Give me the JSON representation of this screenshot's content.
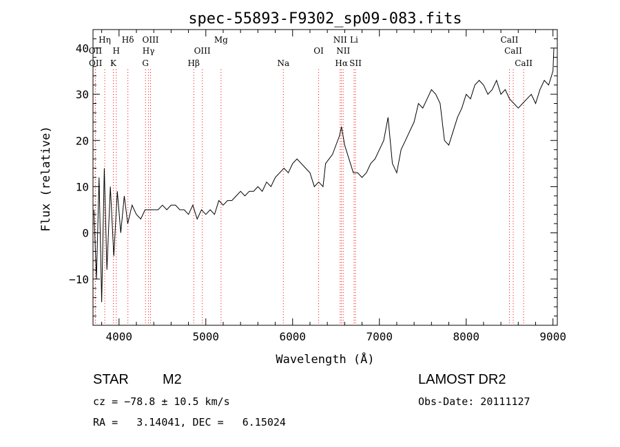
{
  "chart_data": {
    "type": "line",
    "title": "spec-55893-F9302_sp09-083.fits",
    "xlabel": "Wavelength (Å)",
    "ylabel": "Flux (relative)",
    "xlim": [
      3700,
      9050
    ],
    "ylim": [
      -20,
      44
    ],
    "x_ticks": [
      4000,
      5000,
      6000,
      7000,
      8000,
      9000
    ],
    "x_tick_labels": [
      "4000",
      "5000",
      "6000",
      "7000",
      "8000",
      "9000"
    ],
    "y_ticks": [
      -10,
      0,
      10,
      20,
      30,
      40
    ],
    "y_tick_labels": [
      "−10",
      "0",
      "10",
      "20",
      "30",
      "40"
    ],
    "grid": false,
    "line_color": "#000000",
    "marker_color": "#ff0000",
    "series": [
      {
        "x": [
          3710,
          3740,
          3770,
          3800,
          3830,
          3860,
          3900,
          3940,
          3980,
          4020,
          4060,
          4100,
          4150,
          4200,
          4250,
          4300,
          4350,
          4400,
          4450,
          4500,
          4550,
          4600,
          4650,
          4700,
          4750,
          4800,
          4850,
          4900,
          4950,
          5000,
          5050,
          5100,
          5150,
          5200,
          5250,
          5300,
          5350,
          5400,
          5450,
          5500,
          5550,
          5600,
          5650,
          5700,
          5750,
          5800,
          5850,
          5900,
          5950,
          6000,
          6050,
          6100,
          6150,
          6200,
          6250,
          6300,
          6350,
          6380,
          6420,
          6460,
          6500,
          6540,
          6563,
          6600,
          6650,
          6700,
          6750,
          6800,
          6850,
          6900,
          6950,
          7000,
          7050,
          7100,
          7150,
          7200,
          7250,
          7300,
          7350,
          7400,
          7450,
          7500,
          7550,
          7600,
          7650,
          7700,
          7750,
          7800,
          7850,
          7900,
          7950,
          8000,
          8050,
          8100,
          8150,
          8200,
          8250,
          8300,
          8350,
          8400,
          8450,
          8500,
          8550,
          8600,
          8650,
          8700,
          8750,
          8800,
          8850,
          8900,
          8950,
          9000,
          9010
        ],
        "y": [
          5,
          -10,
          12,
          -15,
          14,
          -8,
          10,
          -5,
          9,
          0,
          8,
          2,
          6,
          4,
          3,
          5,
          5,
          5,
          5,
          6,
          5,
          6,
          6,
          5,
          5,
          4,
          6,
          3,
          5,
          4,
          5,
          4,
          7,
          6,
          7,
          7,
          8,
          9,
          8,
          9,
          9,
          10,
          9,
          11,
          10,
          12,
          13,
          14,
          13,
          15,
          16,
          15,
          14,
          13,
          10,
          11,
          10,
          15,
          16,
          17,
          19,
          21,
          23,
          19,
          16,
          13,
          13,
          12,
          13,
          15,
          16,
          18,
          20,
          25,
          15,
          13,
          18,
          20,
          22,
          24,
          28,
          27,
          29,
          31,
          30,
          28,
          20,
          19,
          22,
          25,
          27,
          30,
          29,
          32,
          33,
          32,
          30,
          31,
          33,
          30,
          31,
          29,
          28,
          27,
          28,
          29,
          30,
          28,
          31,
          33,
          32,
          35,
          40
        ]
      }
    ],
    "line_markers": [
      {
        "label": "OII",
        "x": 3727,
        "row": 2
      },
      {
        "label": "OII",
        "x": 3729,
        "row": 3
      },
      {
        "label": "Hη",
        "x": 3835,
        "row": 1
      },
      {
        "label": "H",
        "x": 3968,
        "row": 2
      },
      {
        "label": "K",
        "x": 3934,
        "row": 3
      },
      {
        "label": "Hδ",
        "x": 4102,
        "row": 1
      },
      {
        "label": "OIII",
        "x": 4363,
        "row": 1
      },
      {
        "label": "Hγ",
        "x": 4340,
        "row": 2
      },
      {
        "label": "G",
        "x": 4305,
        "row": 3
      },
      {
        "label": "Mg",
        "x": 5175,
        "row": 1
      },
      {
        "label": "OIII",
        "x": 4959,
        "row": 2
      },
      {
        "label": "Hβ",
        "x": 4861,
        "row": 3
      },
      {
        "label": "Na",
        "x": 5893,
        "row": 3
      },
      {
        "label": "OI",
        "x": 6300,
        "row": 2
      },
      {
        "label": "NII",
        "x": 6548,
        "row": 1
      },
      {
        "label": "NII",
        "x": 6583,
        "row": 2
      },
      {
        "label": "Hα",
        "x": 6563,
        "row": 3
      },
      {
        "label": "Li",
        "x": 6708,
        "row": 1
      },
      {
        "label": "SII",
        "x": 6724,
        "row": 3
      },
      {
        "label": "CaII",
        "x": 8498,
        "row": 1
      },
      {
        "label": "CaII",
        "x": 8542,
        "row": 2
      },
      {
        "label": "CaII",
        "x": 8662,
        "row": 3
      }
    ]
  },
  "footer": {
    "object_class": "STAR",
    "subclass": "M2",
    "survey": "LAMOST DR2",
    "redshift": "cz = −78.8 ± 10.5 km/s",
    "obs_date": "Obs-Date: 20111127",
    "coords": "RA =   3.14041, DEC =   6.15024"
  }
}
